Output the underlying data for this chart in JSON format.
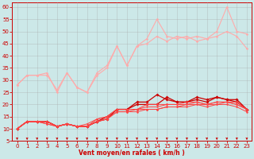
{
  "title": "",
  "xlabel": "Vent moyen/en rafales ( km/h )",
  "bg_color": "#cce8e8",
  "grid_color": "#aaaaaa",
  "xlim": [
    -0.5,
    23.5
  ],
  "ylim": [
    5,
    62
  ],
  "yticks": [
    5,
    10,
    15,
    20,
    25,
    30,
    35,
    40,
    45,
    50,
    55,
    60
  ],
  "xticks": [
    0,
    1,
    2,
    3,
    4,
    5,
    6,
    7,
    8,
    9,
    10,
    11,
    12,
    13,
    14,
    15,
    16,
    17,
    18,
    19,
    20,
    21,
    22,
    23
  ],
  "x": [
    0,
    1,
    2,
    3,
    4,
    5,
    6,
    7,
    8,
    9,
    10,
    11,
    12,
    13,
    14,
    15,
    16,
    17,
    18,
    19,
    20,
    21,
    22,
    23
  ],
  "lines": [
    {
      "y": [
        28,
        32,
        32,
        33,
        25,
        33,
        27,
        25,
        32,
        35,
        44,
        36,
        44,
        45,
        48,
        46,
        48,
        47,
        48,
        47,
        48,
        50,
        48,
        43
      ],
      "color": "#ffaaaa",
      "lw": 0.8,
      "marker": "D",
      "ms": 1.5
    },
    {
      "y": [
        28,
        32,
        32,
        32,
        26,
        33,
        27,
        25,
        33,
        36,
        44,
        36,
        44,
        47,
        55,
        48,
        47,
        48,
        46,
        47,
        50,
        60,
        50,
        49
      ],
      "color": "#ffaaaa",
      "lw": 0.8,
      "marker": "D",
      "ms": 1.5
    },
    {
      "y": [
        10,
        13,
        13,
        13,
        11,
        12,
        11,
        11,
        13,
        14,
        18,
        18,
        20,
        20,
        20,
        23,
        21,
        21,
        22,
        21,
        23,
        22,
        21,
        18
      ],
      "color": "#cc0000",
      "lw": 0.9,
      "marker": "D",
      "ms": 1.8
    },
    {
      "y": [
        10,
        13,
        13,
        13,
        11,
        12,
        11,
        11,
        13,
        15,
        18,
        18,
        21,
        21,
        24,
        22,
        21,
        21,
        23,
        22,
        23,
        22,
        22,
        18
      ],
      "color": "#cc0000",
      "lw": 0.9,
      "marker": "D",
      "ms": 1.8
    },
    {
      "y": [
        10,
        13,
        13,
        13,
        11,
        12,
        11,
        11,
        14,
        15,
        18,
        18,
        18,
        20,
        20,
        20,
        20,
        21,
        21,
        20,
        21,
        21,
        21,
        18
      ],
      "color": "#ff4444",
      "lw": 0.7,
      "marker": "D",
      "ms": 1.4
    },
    {
      "y": [
        10,
        13,
        13,
        13,
        11,
        12,
        11,
        12,
        14,
        15,
        18,
        18,
        18,
        19,
        19,
        20,
        20,
        20,
        21,
        20,
        21,
        21,
        20,
        18
      ],
      "color": "#ff4444",
      "lw": 0.7,
      "marker": "D",
      "ms": 1.4
    },
    {
      "y": [
        10,
        13,
        13,
        12,
        11,
        12,
        11,
        11,
        13,
        14,
        17,
        17,
        18,
        18,
        18,
        19,
        19,
        20,
        20,
        20,
        20,
        21,
        20,
        18
      ],
      "color": "#ff4444",
      "lw": 0.7,
      "marker": "D",
      "ms": 1.4
    },
    {
      "y": [
        10,
        13,
        13,
        12,
        11,
        12,
        11,
        11,
        13,
        14,
        17,
        17,
        17,
        18,
        18,
        19,
        19,
        19,
        20,
        19,
        20,
        20,
        19,
        17
      ],
      "color": "#ff4444",
      "lw": 0.7,
      "marker": "D",
      "ms": 1.4
    }
  ],
  "arrow_color": "#cc0000",
  "axis_color": "#cc0000",
  "tick_color": "#cc0000",
  "label_color": "#cc0000",
  "tick_fontsize": 5.0,
  "xlabel_fontsize": 5.5
}
